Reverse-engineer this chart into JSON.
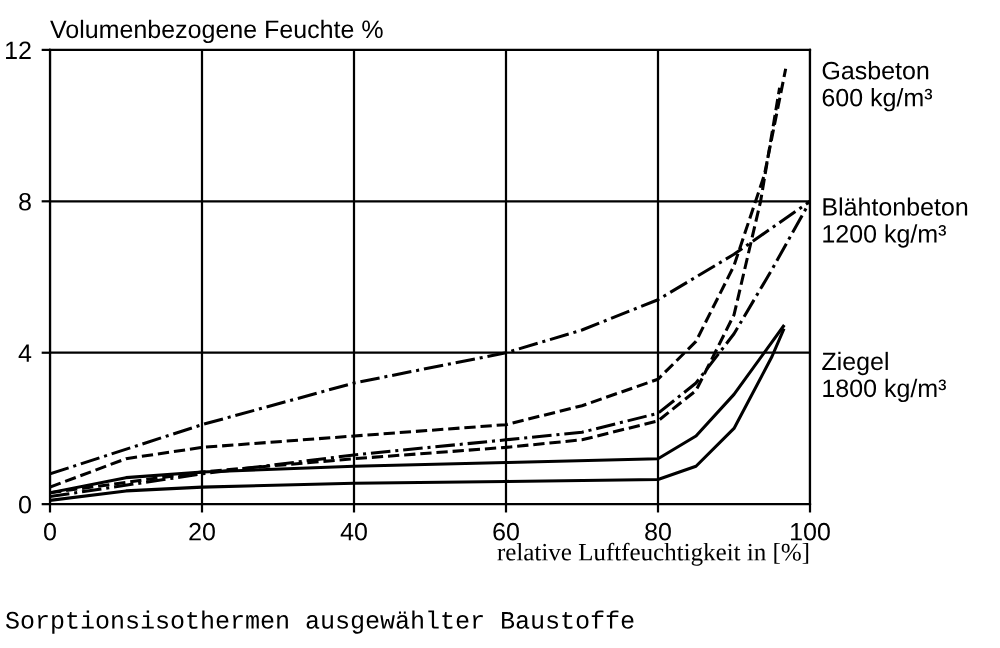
{
  "chart_data": {
    "type": "line",
    "title": "Sorptionsisothermen ausgewählter Baustoffe",
    "ylabel": "Volumenbezogene Feuchte %",
    "xlabel": "relative Luftfeuchtigkeit in [%]",
    "xlim": [
      0,
      100
    ],
    "xticks": [
      0,
      20,
      40,
      60,
      80,
      100
    ],
    "ylim": [
      0,
      12
    ],
    "yticks": [
      0,
      4,
      8,
      12
    ],
    "grid": true,
    "marker": "none",
    "series": [
      {
        "color": "#000000",
        "line_style": "dashed",
        "x": [
          0,
          10,
          20,
          40,
          60,
          70,
          80,
          85,
          90,
          94,
          96.8
        ],
        "values": [
          0.45,
          1.2,
          1.5,
          1.8,
          2.1,
          2.6,
          3.3,
          4.3,
          6.3,
          8.7,
          11.5
        ]
      },
      {
        "color": "#000000",
        "line_style": "dashed",
        "x": [
          0,
          20,
          40,
          60,
          70,
          80,
          85,
          90,
          93.5,
          96
        ],
        "values": [
          0.3,
          0.85,
          1.2,
          1.5,
          1.7,
          2.2,
          3.0,
          5.0,
          8,
          11
        ]
      },
      {
        "color": "#000000",
        "line_style": "dashdot",
        "x": [
          0,
          20,
          40,
          60,
          70,
          80,
          90,
          100
        ],
        "values": [
          0.8,
          2.1,
          3.2,
          4.0,
          4.6,
          5.4,
          6.6,
          8
        ]
      },
      {
        "color": "#000000",
        "line_style": "dashdot",
        "x": [
          0,
          20,
          40,
          60,
          70,
          80,
          85,
          90,
          95,
          100
        ],
        "values": [
          0.2,
          0.8,
          1.3,
          1.7,
          1.9,
          2.4,
          3.2,
          4.5,
          6.2,
          8
        ]
      },
      {
        "color": "#000000",
        "line_style": "solid",
        "x": [
          0,
          10,
          20,
          40,
          60,
          80,
          85,
          90,
          96.5
        ],
        "values": [
          0.3,
          0.7,
          0.85,
          1.0,
          1.1,
          1.2,
          1.8,
          2.9,
          4.7
        ]
      },
      {
        "color": "#000000",
        "line_style": "solid",
        "x": [
          0,
          10,
          20,
          40,
          60,
          80,
          85,
          90,
          95,
          96.5
        ],
        "values": [
          0.1,
          0.35,
          0.45,
          0.55,
          0.6,
          0.65,
          1.0,
          2.0,
          3.9,
          4.6
        ]
      }
    ],
    "annotations": [
      "Gasbeton\n600 kg/m³",
      "Blähtonbeton\n1200 kg/m³",
      "Ziegel\n1800 kg/m³"
    ]
  }
}
